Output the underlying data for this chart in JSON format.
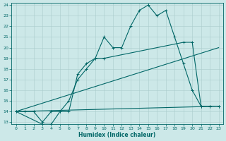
{
  "xlabel": "Humidex (Indice chaleur)",
  "bg_color": "#cce8e8",
  "grid_color": "#aacccc",
  "line_color": "#006666",
  "xlim": [
    -0.5,
    23.5
  ],
  "ylim": [
    12.8,
    24.2
  ],
  "xticks": [
    0,
    1,
    2,
    3,
    4,
    5,
    6,
    7,
    8,
    9,
    10,
    11,
    12,
    13,
    14,
    15,
    16,
    17,
    18,
    19,
    20,
    21,
    22,
    23
  ],
  "yticks": [
    13,
    14,
    15,
    16,
    17,
    18,
    19,
    20,
    21,
    22,
    23,
    24
  ],
  "line1_x": [
    0,
    1,
    2,
    3,
    4,
    5,
    6,
    7,
    8,
    9,
    10,
    11,
    12,
    13,
    14,
    15,
    16,
    17,
    18,
    19,
    20,
    21,
    22,
    23
  ],
  "line1_y": [
    14,
    14,
    14,
    13,
    14,
    14,
    15,
    17,
    18,
    19,
    21,
    20,
    20,
    22,
    23.5,
    24,
    23,
    23.5,
    21,
    18.5,
    16,
    14.5,
    14.5,
    14.5
  ],
  "line2_x": [
    0,
    3,
    4,
    5,
    6,
    7,
    8,
    9,
    10,
    19,
    20,
    21,
    22,
    23
  ],
  "line2_y": [
    14,
    12.8,
    12.8,
    14,
    14,
    17.5,
    18.5,
    19,
    19,
    20.5,
    20.5,
    14.5,
    14.5,
    14.5
  ],
  "line3_x": [
    0,
    23
  ],
  "line3_y": [
    14,
    20
  ],
  "line4_x": [
    0,
    23
  ],
  "line4_y": [
    14,
    14.5
  ]
}
